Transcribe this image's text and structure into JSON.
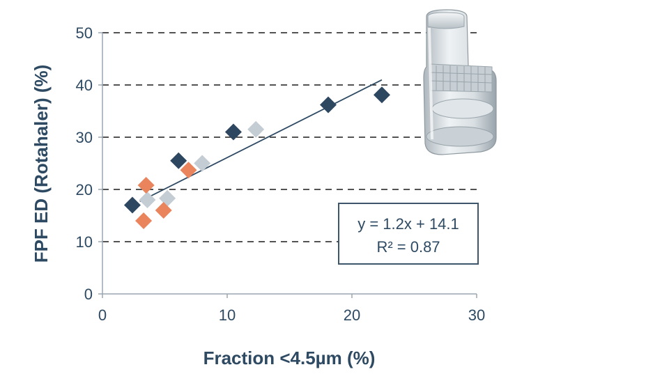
{
  "chart_data": {
    "type": "scatter",
    "xlabel": "Fraction <4.5µm (%)",
    "ylabel": "FPF ED (Rotahaler) (%)",
    "xlim": [
      0,
      30
    ],
    "ylim": [
      0,
      50
    ],
    "xticks": [
      0,
      10,
      20,
      30
    ],
    "yticks": [
      0,
      10,
      20,
      30,
      40,
      50
    ],
    "x_tick_labels": [
      "0",
      "10",
      "20",
      "30"
    ],
    "y_tick_labels": [
      "0",
      "10",
      "20",
      "30",
      "40",
      "50"
    ],
    "grid": "horizontal dashed",
    "marker": "diamond",
    "series": [
      {
        "color": "#2d4760",
        "points": [
          {
            "x": 2.4,
            "y": 17.0
          },
          {
            "x": 6.1,
            "y": 25.5
          },
          {
            "x": 10.5,
            "y": 31.0
          },
          {
            "x": 18.1,
            "y": 36.2
          },
          {
            "x": 22.4,
            "y": 38.1
          }
        ]
      },
      {
        "color": "#e9845c",
        "points": [
          {
            "x": 3.5,
            "y": 20.8
          },
          {
            "x": 3.3,
            "y": 14.0
          },
          {
            "x": 4.9,
            "y": 16.0
          },
          {
            "x": 6.9,
            "y": 23.7
          }
        ]
      },
      {
        "color": "#c4ccd4",
        "points": [
          {
            "x": 3.6,
            "y": 18.0
          },
          {
            "x": 5.2,
            "y": 18.3
          },
          {
            "x": 8.0,
            "y": 25.0
          },
          {
            "x": 12.3,
            "y": 31.5
          }
        ]
      }
    ],
    "trendline": {
      "slope": 1.2,
      "intercept": 14.1,
      "x_range": [
        3.0,
        22.4
      ],
      "color": "#2e4a63"
    },
    "annotation": {
      "equation": "y = 1.2x + 14.1",
      "r_squared": "R² = 0.87"
    }
  },
  "image": {
    "icon": "inhaler-device-icon"
  }
}
